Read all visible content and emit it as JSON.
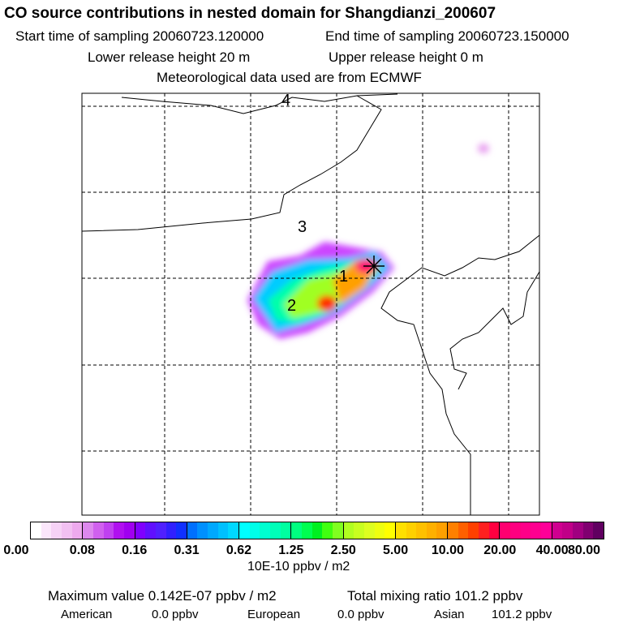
{
  "title": "CO  source contributions in nested domain for Shangdianzi_200607",
  "line2a": "Start time of sampling 20060723.120000",
  "line2b": "End time of sampling 20060723.150000",
  "line3a": "Lower release height   20 m",
  "line3b": "Upper release height    0 m",
  "line4": "Meteorological data used are from ECMWF",
  "chart_data": {
    "type": "heatmap",
    "title": "CO  source contributions in nested domain for Shangdianzi_200607",
    "region_labels": [
      "1",
      "2",
      "3",
      "4"
    ],
    "colorbar": {
      "ticks": [
        "0.00",
        "0.08",
        "0.16",
        "0.31",
        "0.62",
        "1.25",
        "2.50",
        "5.00",
        "10.00",
        "20.00",
        "40.00",
        "80.00"
      ],
      "colors": [
        [
          "#ffffff",
          "#fbe6fb",
          "#f6d2f6",
          "#f2c0f2",
          "#eeaaee"
        ],
        [
          "#dd88ee",
          "#d060ee",
          "#c040f0",
          "#b010f0",
          "#a000f0"
        ],
        [
          "#8000ff",
          "#6010ff",
          "#5020ff",
          "#3020ff",
          "#1030ff"
        ],
        [
          "#0070ff",
          "#0090ff",
          "#00a8ff",
          "#00c0ff",
          "#00d8ff"
        ],
        [
          "#00ffff",
          "#00ffe8",
          "#00ffd0",
          "#00ffb8",
          "#00ffa0"
        ],
        [
          "#00ff80",
          "#00ff50",
          "#00f020",
          "#40ff10",
          "#80ff20"
        ],
        [
          "#b0ff20",
          "#c8ff20",
          "#ddff20",
          "#eeff10",
          "#ffff00"
        ],
        [
          "#ffe000",
          "#ffd000",
          "#ffc000",
          "#ffb000",
          "#ffa000"
        ],
        [
          "#ff8000",
          "#ff6000",
          "#ff4000",
          "#ff2020",
          "#ff0040"
        ],
        [
          "#ff0070",
          "#ff0080",
          "#ff0088",
          "#ff0090",
          "#ff0098"
        ],
        [
          "#d00090",
          "#c00088",
          "#a00080",
          "#800070",
          "#600060"
        ]
      ],
      "unit": "10E-10 ppbv / m2"
    },
    "max_value": "Maximum value  0.142E-07 ppbv / m2",
    "total": "Total mixing ratio     101.2 ppbv",
    "american": "American",
    "american_v": "0.0 ppbv",
    "european": "European",
    "european_v": "0.0 ppbv",
    "asian": "Asian",
    "asian_v": "101.2 ppbv"
  }
}
